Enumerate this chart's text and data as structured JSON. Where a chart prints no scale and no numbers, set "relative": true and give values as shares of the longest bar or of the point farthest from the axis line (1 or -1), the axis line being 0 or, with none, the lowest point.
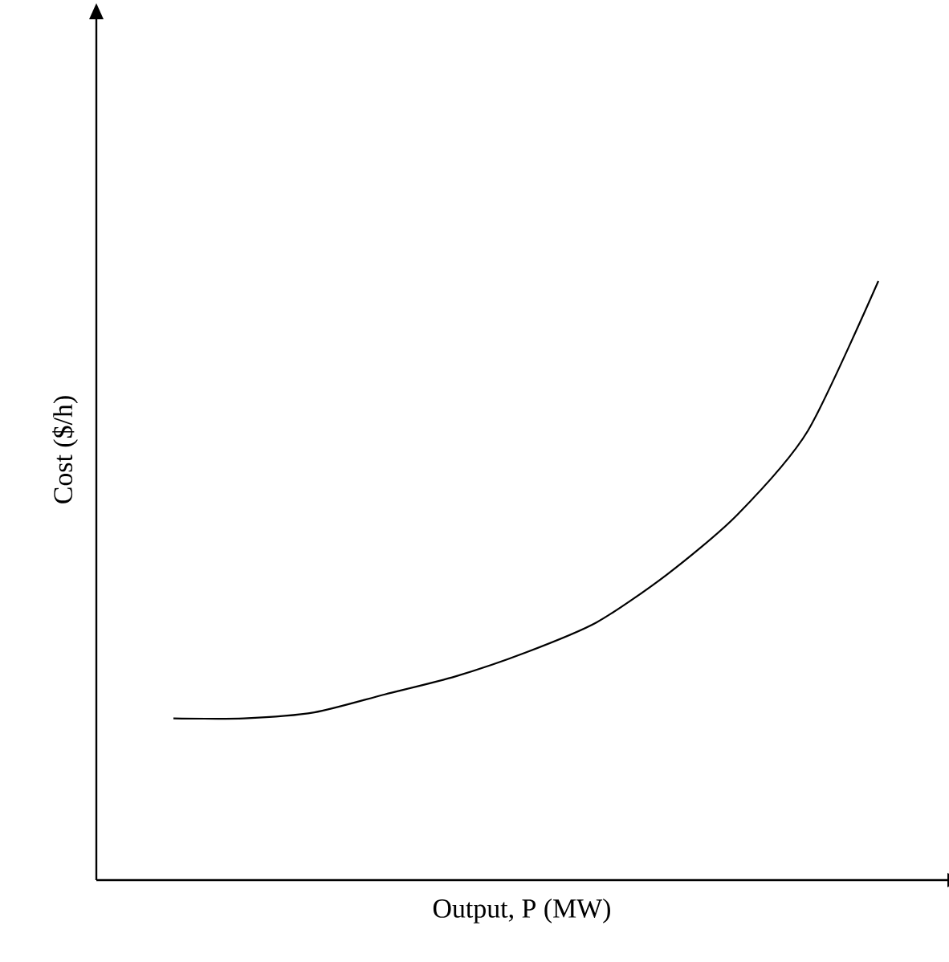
{
  "chart_data": {
    "type": "line",
    "xlabel": "Output, P (MW)",
    "ylabel": "Cost ($/h)",
    "relative": true,
    "categories": [
      null,
      null,
      null,
      null,
      null,
      null,
      null,
      null,
      null,
      null,
      null
    ],
    "series": [
      {
        "color": "#000000",
        "values": [
          0.27,
          0.27,
          0.28,
          0.31,
          0.34,
          0.38,
          0.43,
          0.51,
          0.61,
          0.75,
          1
        ]
      }
    ]
  }
}
